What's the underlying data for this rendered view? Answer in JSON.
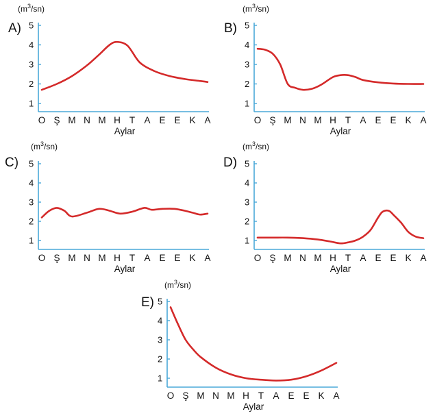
{
  "colors": {
    "axis": "#4aa8d8",
    "line": "#d42a2a",
    "text": "#111111"
  },
  "chart_data": [
    {
      "type": "line",
      "panel_label": "A)",
      "unit_label": "(m3/sn)",
      "xlabel": "Aylar",
      "categories": [
        "O",
        "Ş",
        "M",
        "N",
        "M",
        "H",
        "T",
        "A",
        "E",
        "E",
        "K",
        "A"
      ],
      "yticks": [
        1,
        2,
        3,
        4,
        5
      ],
      "ylim": [
        1,
        5
      ],
      "series": [
        {
          "x": [
            0,
            1,
            2,
            3,
            3.8,
            4.5,
            5,
            5.7,
            6.5,
            7.5,
            8.5,
            9.5,
            10.5,
            11
          ],
          "values": [
            1.7,
            2.0,
            2.4,
            2.95,
            3.5,
            4.0,
            4.15,
            3.95,
            3.1,
            2.65,
            2.4,
            2.25,
            2.15,
            2.1
          ]
        }
      ]
    },
    {
      "type": "line",
      "panel_label": "B)",
      "unit_label": "(m3/sn)",
      "xlabel": "Aylar",
      "categories": [
        "O",
        "Ş",
        "M",
        "N",
        "M",
        "H",
        "T",
        "A",
        "E",
        "E",
        "K",
        "A"
      ],
      "yticks": [
        1,
        2,
        3,
        4,
        5
      ],
      "ylim": [
        1,
        5
      ],
      "series": [
        {
          "x": [
            0,
            0.5,
            1,
            1.5,
            2,
            2.5,
            3,
            3.6,
            4.2,
            5,
            5.5,
            6,
            6.5,
            7,
            8,
            9,
            10,
            11
          ],
          "values": [
            3.8,
            3.75,
            3.55,
            3.0,
            2.0,
            1.8,
            1.7,
            1.75,
            1.95,
            2.35,
            2.45,
            2.45,
            2.35,
            2.2,
            2.08,
            2.02,
            2.0,
            2.0
          ]
        }
      ]
    },
    {
      "type": "line",
      "panel_label": "C)",
      "unit_label": "(m3/sn)",
      "xlabel": "Aylar",
      "categories": [
        "O",
        "Ş",
        "M",
        "N",
        "M",
        "H",
        "T",
        "A",
        "E",
        "E",
        "K",
        "A"
      ],
      "yticks": [
        1,
        2,
        3,
        4,
        5
      ],
      "ylim": [
        1,
        5
      ],
      "series": [
        {
          "x": [
            0,
            0.5,
            1,
            1.5,
            2,
            3,
            3.8,
            4.5,
            5.2,
            6,
            6.8,
            7.3,
            8,
            8.8,
            9.5,
            10,
            10.5,
            11
          ],
          "values": [
            2.2,
            2.55,
            2.7,
            2.55,
            2.25,
            2.45,
            2.65,
            2.55,
            2.4,
            2.5,
            2.7,
            2.6,
            2.65,
            2.65,
            2.55,
            2.45,
            2.35,
            2.4
          ]
        }
      ]
    },
    {
      "type": "line",
      "panel_label": "D)",
      "unit_label": "(m3/sn)",
      "xlabel": "Aylar",
      "categories": [
        "O",
        "Ş",
        "M",
        "N",
        "M",
        "H",
        "T",
        "A",
        "E",
        "E",
        "K",
        "A"
      ],
      "yticks": [
        1,
        2,
        3,
        4,
        5
      ],
      "ylim": [
        1,
        5
      ],
      "series": [
        {
          "x": [
            0,
            1,
            2,
            3,
            4,
            4.8,
            5.5,
            6,
            6.5,
            7,
            7.5,
            8,
            8.3,
            8.7,
            9,
            9.5,
            10,
            10.5,
            11
          ],
          "values": [
            1.15,
            1.15,
            1.15,
            1.12,
            1.05,
            0.95,
            0.85,
            0.9,
            1.0,
            1.2,
            1.55,
            2.2,
            2.5,
            2.55,
            2.35,
            1.95,
            1.45,
            1.2,
            1.12
          ]
        }
      ]
    },
    {
      "type": "line",
      "panel_label": "E)",
      "unit_label": "(m3/sn)",
      "xlabel": "Aylar",
      "categories": [
        "O",
        "Ş",
        "M",
        "N",
        "M",
        "H",
        "T",
        "A",
        "E",
        "E",
        "K",
        "A"
      ],
      "yticks": [
        1,
        2,
        3,
        4,
        5
      ],
      "ylim": [
        1,
        5
      ],
      "series": [
        {
          "x": [
            0,
            0.5,
            1,
            1.5,
            2,
            3,
            4,
            5,
            6,
            7,
            8,
            9,
            10,
            11
          ],
          "values": [
            4.7,
            3.8,
            3.0,
            2.5,
            2.1,
            1.55,
            1.2,
            1.0,
            0.92,
            0.88,
            0.92,
            1.1,
            1.4,
            1.8
          ]
        }
      ]
    }
  ]
}
